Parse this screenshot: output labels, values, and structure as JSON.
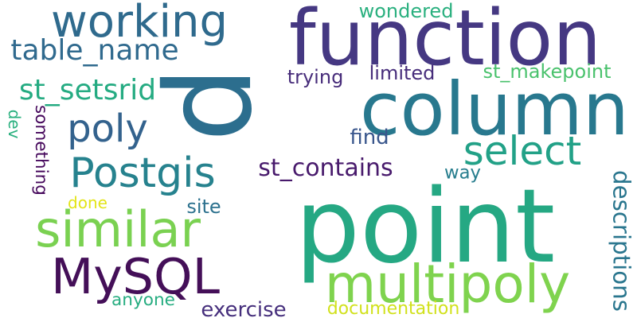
{
  "words": [
    {
      "text": "p",
      "color": "#2c6e8e",
      "rotate": 90
    },
    {
      "text": "point",
      "color": "#25a883",
      "rotate": 0
    },
    {
      "text": "function",
      "color": "#453882",
      "rotate": 0
    },
    {
      "text": "column",
      "color": "#28788e",
      "rotate": 0
    },
    {
      "text": "multipoly",
      "color": "#7fd34e",
      "rotate": 0
    },
    {
      "text": "similar",
      "color": "#7ad151",
      "rotate": 0
    },
    {
      "text": "MySQL",
      "color": "#440f58",
      "rotate": 0
    },
    {
      "text": "working",
      "color": "#2f6a8d",
      "rotate": 0
    },
    {
      "text": "select",
      "color": "#22a187",
      "rotate": 0
    },
    {
      "text": "Postgis",
      "color": "#26828e",
      "rotate": 0
    },
    {
      "text": "poly",
      "color": "#33628d",
      "rotate": 0
    },
    {
      "text": "st_contains",
      "color": "#481a6c",
      "rotate": 0
    },
    {
      "text": "table_name",
      "color": "#306a8e",
      "rotate": 0
    },
    {
      "text": "st_setsrid",
      "color": "#25ab82",
      "rotate": 0
    },
    {
      "text": "st_makepoint",
      "color": "#4ac26d",
      "rotate": 0
    },
    {
      "text": "limited",
      "color": "#472d7b",
      "rotate": 0
    },
    {
      "text": "trying",
      "color": "#472c7a",
      "rotate": 0
    },
    {
      "text": "wondered",
      "color": "#2ab07f",
      "rotate": 0
    },
    {
      "text": "find",
      "color": "#39568c",
      "rotate": 0
    },
    {
      "text": "way",
      "color": "#277e8e",
      "rotate": 0
    },
    {
      "text": "site",
      "color": "#2c718e",
      "rotate": 0
    },
    {
      "text": "done",
      "color": "#e3e418",
      "rotate": 0
    },
    {
      "text": "anyone",
      "color": "#27ad81",
      "rotate": 0
    },
    {
      "text": "exercise",
      "color": "#462f7c",
      "rotate": 0
    },
    {
      "text": "documentation",
      "color": "#d1e11c",
      "rotate": 0
    },
    {
      "text": "descriptions",
      "color": "#2a768e",
      "rotate": 90
    },
    {
      "text": "dev",
      "color": "#2ab07f",
      "rotate": 90
    },
    {
      "text": "something",
      "color": "#46085c",
      "rotate": 90
    }
  ]
}
